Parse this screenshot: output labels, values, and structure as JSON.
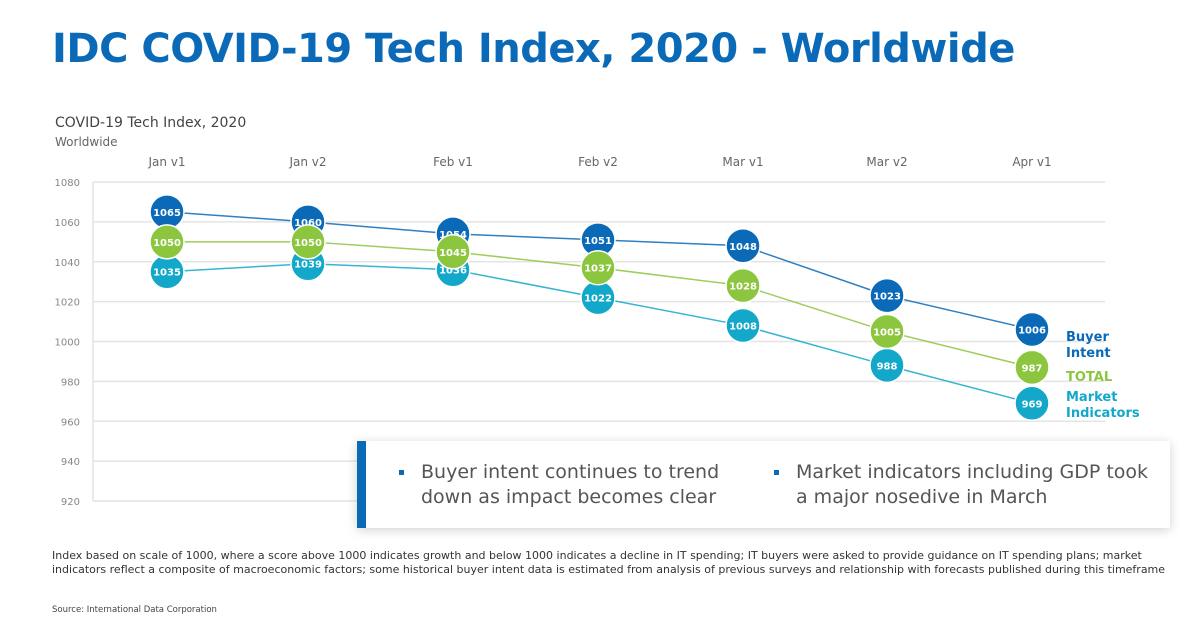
{
  "page": {
    "title": "IDC COVID-19 Tech Index, 2020 - Worldwide",
    "callout": {
      "bullets": [
        "Buyer intent continues to trend down as impact becomes clear",
        "Market indicators including GDP took a major nosedive in March"
      ],
      "accent_color": "#0a6ab8"
    },
    "footnote": "Index based on scale of 1000, where a score above 1000 indicates growth and below 1000 indicates a decline in IT spending; IT buyers were asked to provide guidance on IT spending plans; market indicators reflect a composite of macroeconomic factors; some historical buyer intent data is estimated from analysis of previous surveys and relationship with forecasts published during this timeframe",
    "source": "Source: International Data Corporation"
  },
  "chart_data": {
    "type": "line",
    "title": "COVID-19 Tech Index, 2020",
    "subtitle": "Worldwide",
    "xlabel": "",
    "ylabel": "",
    "categories": [
      "Jan v1",
      "Jan v2",
      "Feb v1",
      "Feb v2",
      "Mar v1",
      "Mar v2",
      "Apr v1"
    ],
    "ylim": [
      920,
      1080
    ],
    "yticks": [
      920,
      940,
      960,
      980,
      1000,
      1020,
      1040,
      1060,
      1080
    ],
    "grid": true,
    "legend": "right, inline at series ends",
    "series": [
      {
        "name": "Buyer Intent",
        "legend_label": [
          "Buyer",
          "Intent"
        ],
        "color": "#0a6ab8",
        "values": [
          1065,
          1060,
          1054,
          1051,
          1048,
          1023,
          1006
        ]
      },
      {
        "name": "TOTAL",
        "legend_label": [
          "TOTAL"
        ],
        "color": "#8cc63f",
        "values": [
          1050,
          1050,
          1045,
          1037,
          1028,
          1005,
          987
        ]
      },
      {
        "name": "Market Indicators",
        "legend_label": [
          "Market",
          "Indicators"
        ],
        "color": "#13a8c9",
        "values": [
          1035,
          1039,
          1036,
          1022,
          1008,
          988,
          969
        ]
      }
    ]
  }
}
